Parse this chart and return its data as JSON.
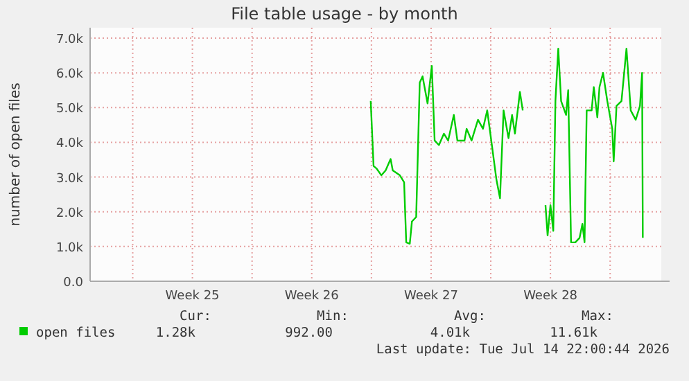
{
  "chart_data": {
    "type": "line",
    "title": "File table usage - by month",
    "ylabel": "number of open files",
    "x": [
      "2026-06-28T23:00",
      "2026-06-29T03:00",
      "2026-06-29T07:00",
      "2026-06-29T14:00",
      "2026-06-29T20:00",
      "2026-06-30T03:00",
      "2026-06-30T06:00",
      "2026-06-30T16:00",
      "2026-06-30T22:00",
      "2026-07-01T01:00",
      "2026-07-01T06:00",
      "2026-07-01T09:00",
      "2026-07-01T15:00",
      "2026-07-01T20:00",
      "2026-07-02T00:00",
      "2026-07-02T07:00",
      "2026-07-02T13:00",
      "2026-07-02T17:00",
      "2026-07-02T23:00",
      "2026-07-03T06:00",
      "2026-07-03T12:00",
      "2026-07-03T20:00",
      "2026-07-04T01:00",
      "2026-07-04T11:00",
      "2026-07-04T14:00",
      "2026-07-04T21:00",
      "2026-07-05T06:00",
      "2026-07-05T13:00",
      "2026-07-05T19:00",
      "2026-07-06T02:00",
      "2026-07-06T08:00",
      "2026-07-06T13:00",
      "2026-07-06T18:00",
      "2026-07-07T01:00",
      "2026-07-07T06:00",
      "2026-07-07T10:00",
      "2026-07-07T17:00",
      "2026-07-07T21:00",
      "2026-07-08T10:00",
      "2026-07-09T05:00",
      "2026-07-09T08:00",
      "2026-07-09T12:00",
      "2026-07-09T16:00",
      "2026-07-09T19:00",
      "2026-07-09T23:00",
      "2026-07-10T03:00",
      "2026-07-10T10:00",
      "2026-07-10T13:00",
      "2026-07-10T17:00",
      "2026-07-10T23:00",
      "2026-07-11T05:00",
      "2026-07-11T09:00",
      "2026-07-11T12:00",
      "2026-07-11T15:00",
      "2026-07-11T22:00",
      "2026-07-12T01:00",
      "2026-07-12T06:00",
      "2026-07-12T09:00",
      "2026-07-12T14:00",
      "2026-07-12T20:00",
      "2026-07-13T03:00",
      "2026-07-13T05:00",
      "2026-07-13T09:00",
      "2026-07-13T16:00",
      "2026-07-13T23:00",
      "2026-07-14T05:00",
      "2026-07-14T12:00",
      "2026-07-14T18:00",
      "2026-07-14T21:00",
      "2026-07-14T22:00"
    ],
    "series": [
      {
        "name": "open files",
        "color": "#00cc00",
        "values": [
          5190,
          3320,
          3250,
          3050,
          3190,
          3520,
          3190,
          3050,
          2850,
          1120,
          1080,
          1720,
          1850,
          5720,
          5900,
          5120,
          6200,
          4050,
          3920,
          4250,
          4050,
          4790,
          4050,
          4050,
          4390,
          4050,
          4650,
          4390,
          4920,
          3850,
          2920,
          2390,
          4920,
          4120,
          4790,
          4250,
          5450,
          4920,
          null,
          2190,
          1320,
          2190,
          1450,
          5190,
          6700,
          5190,
          4790,
          5500,
          1120,
          1120,
          1250,
          1650,
          1120,
          4920,
          4920,
          5590,
          4720,
          5590,
          6000,
          5190,
          4390,
          3450,
          5050,
          5190,
          6700,
          4920,
          4650,
          5050,
          6000,
          1250
        ]
      }
    ],
    "xlim": [
      "2026-06-12T12:00",
      "2026-07-16T00:00"
    ],
    "xticks": [
      {
        "value": "2026-06-15",
        "label": null
      },
      {
        "value": "2026-06-18T12:00",
        "label": "Week 25"
      },
      {
        "value": "2026-06-22",
        "label": null
      },
      {
        "value": "2026-06-25T12:00",
        "label": "Week 26"
      },
      {
        "value": "2026-06-29",
        "label": null
      },
      {
        "value": "2026-07-02T12:00",
        "label": "Week 27"
      },
      {
        "value": "2026-07-06",
        "label": null
      },
      {
        "value": "2026-07-09T12:00",
        "label": "Week 28"
      },
      {
        "value": "2026-07-13",
        "label": null
      }
    ],
    "ylim": [
      0,
      7300
    ],
    "yticks": [
      {
        "value": 0,
        "label": "0.0"
      },
      {
        "value": 1000,
        "label": "1.0k"
      },
      {
        "value": 2000,
        "label": "2.0k"
      },
      {
        "value": 3000,
        "label": "3.0k"
      },
      {
        "value": 4000,
        "label": "4.0k"
      },
      {
        "value": 5000,
        "label": "5.0k"
      },
      {
        "value": 6000,
        "label": "6.0k"
      },
      {
        "value": 7000,
        "label": "7.0k"
      }
    ],
    "grid": true,
    "legend": "bottom",
    "marker": "none",
    "line_style": "solid",
    "annotations": [
      "Cur:",
      "Min:",
      "Avg:",
      "Max:",
      "1.28k",
      "992.00",
      "4.01k",
      "11.61k",
      "Last update: Tue Jul 14 22:00:44 2026"
    ]
  }
}
